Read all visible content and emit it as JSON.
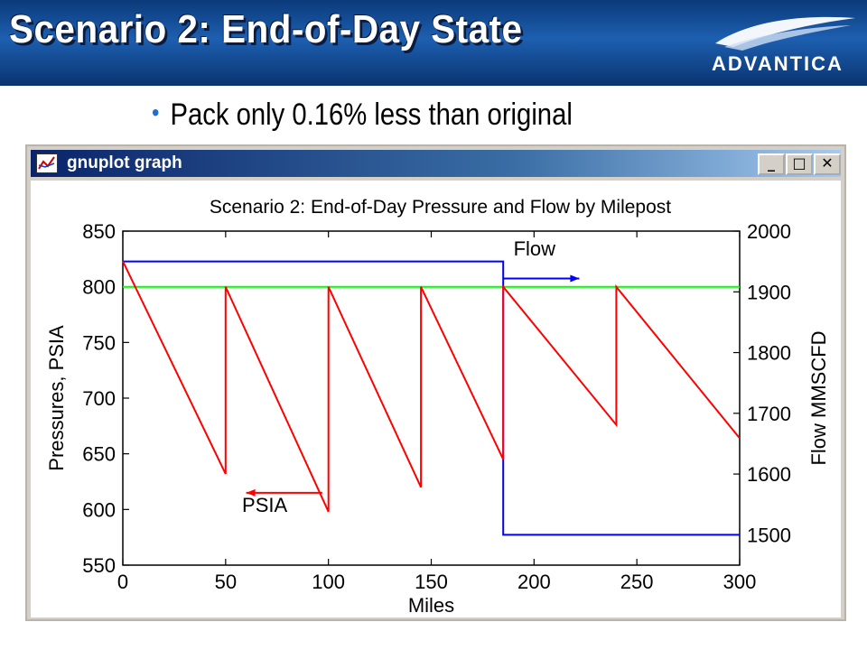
{
  "slide": {
    "title": "Scenario 2: End-of-Day State",
    "logo_text": "ADVANTICA",
    "bullet": "Pack only 0.16% less than original"
  },
  "window": {
    "title": "gnuplot graph",
    "minimize_label": "_",
    "maximize_label": "□",
    "close_label": "✕"
  },
  "colors": {
    "pressure": "#ff0000",
    "flow": "#0000ff",
    "setpoint": "#00ff00",
    "banner": "#1d5fb0",
    "bullet": "#1e6fd0"
  },
  "chart_data": {
    "type": "line",
    "title": "Scenario 2: End-of-Day Pressure and Flow by Milepost",
    "xlabel": "Miles",
    "ylabel": "Pressures, PSIA",
    "y2label": "Flow MMSCFD",
    "xlim": [
      0,
      300
    ],
    "ylim": [
      550,
      850
    ],
    "y2lim": [
      1450,
      2000
    ],
    "xticks": [
      0,
      50,
      100,
      150,
      200,
      250,
      300
    ],
    "yticks": [
      550,
      600,
      650,
      700,
      750,
      800,
      850
    ],
    "y2ticks": [
      1500,
      1600,
      1700,
      1800,
      1900,
      2000
    ],
    "grid": false,
    "series": [
      {
        "name": "PSIA",
        "axis": "y",
        "color": "#ff0000",
        "x": [
          0,
          50,
          50,
          100,
          100,
          145,
          145,
          185,
          185,
          240,
          240,
          300
        ],
        "y": [
          823,
          632,
          800,
          598,
          800,
          620,
          800,
          645,
          800,
          676,
          800,
          664
        ]
      },
      {
        "name": "Flow",
        "axis": "y2",
        "color": "#0000ff",
        "x": [
          0,
          185,
          185,
          300
        ],
        "y": [
          1950,
          1950,
          1500,
          1500
        ]
      },
      {
        "name": "",
        "axis": "y",
        "color": "#00ff00",
        "x": [
          0,
          300
        ],
        "y": [
          800,
          800
        ]
      }
    ],
    "annotations": [
      {
        "text": "Flow",
        "series": "Flow",
        "x": 190,
        "y": 1960,
        "arrow_to_x": 222,
        "arrow_y": 1922,
        "arrow_from_x": 185
      },
      {
        "text": "PSIA",
        "series": "PSIA",
        "x": 58,
        "y": 598,
        "arrow_from_x": 97,
        "arrow_to_x": 60,
        "arrow_y": 615
      }
    ]
  }
}
